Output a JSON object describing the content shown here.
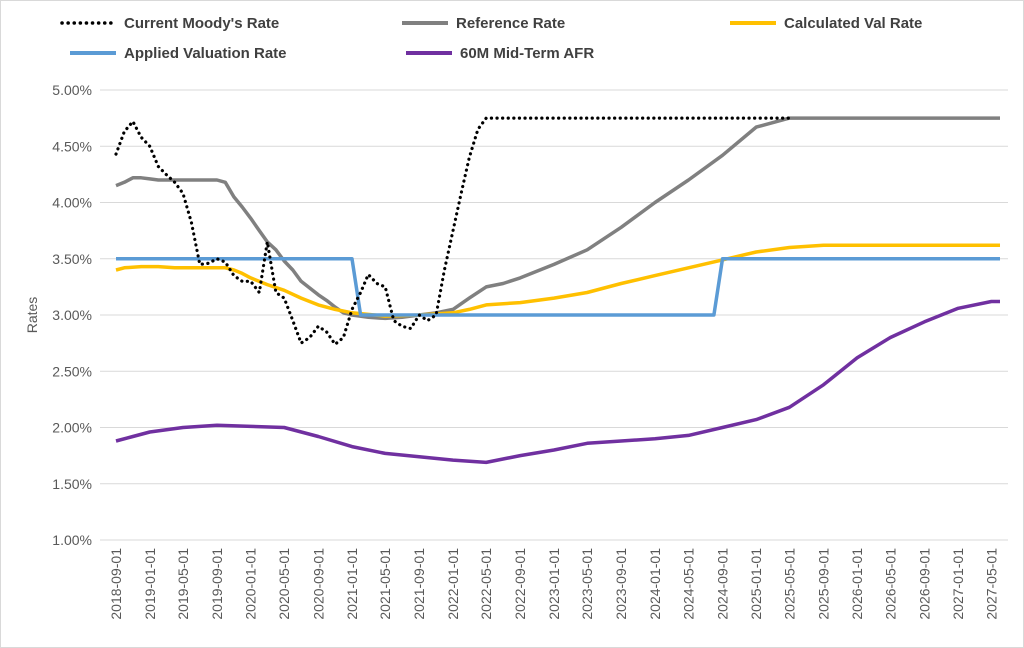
{
  "chart_data": {
    "type": "line",
    "ylabel": "Rates",
    "ylim": [
      0.01,
      0.05
    ],
    "yticks": [
      "1.00%",
      "1.50%",
      "2.00%",
      "2.50%",
      "3.00%",
      "3.50%",
      "4.00%",
      "4.50%",
      "5.00%"
    ],
    "x_ticks": [
      "2018-09-01",
      "2019-01-01",
      "2019-05-01",
      "2019-09-01",
      "2020-01-01",
      "2020-05-01",
      "2020-09-01",
      "2021-01-01",
      "2021-05-01",
      "2021-09-01",
      "2022-01-01",
      "2022-05-01",
      "2022-09-01",
      "2023-01-01",
      "2023-05-01",
      "2023-09-01",
      "2024-01-01",
      "2024-05-01",
      "2024-09-01",
      "2025-01-01",
      "2025-05-01",
      "2025-09-01",
      "2026-01-01",
      "2026-05-01",
      "2026-09-01",
      "2027-01-01",
      "2027-05-01"
    ],
    "grid": true,
    "legend_position": "top",
    "series": [
      {
        "name": "Current Moody's Rate",
        "color": "#000000",
        "style": "dotted",
        "points": [
          [
            "2018-09-01",
            0.0443
          ],
          [
            "2018-10-01",
            0.0463
          ],
          [
            "2018-11-01",
            0.0472
          ],
          [
            "2018-12-01",
            0.0458
          ],
          [
            "2019-01-01",
            0.045
          ],
          [
            "2019-02-01",
            0.0432
          ],
          [
            "2019-03-01",
            0.0425
          ],
          [
            "2019-04-01",
            0.0418
          ],
          [
            "2019-05-01",
            0.0408
          ],
          [
            "2019-06-01",
            0.0382
          ],
          [
            "2019-07-01",
            0.0345
          ],
          [
            "2019-08-01",
            0.0346
          ],
          [
            "2019-09-01",
            0.035
          ],
          [
            "2019-10-01",
            0.0347
          ],
          [
            "2019-11-01",
            0.0335
          ],
          [
            "2019-12-01",
            0.033
          ],
          [
            "2020-01-01",
            0.033
          ],
          [
            "2020-02-01",
            0.032
          ],
          [
            "2020-03-01",
            0.0365
          ],
          [
            "2020-04-01",
            0.032
          ],
          [
            "2020-05-01",
            0.0315
          ],
          [
            "2020-06-01",
            0.0295
          ],
          [
            "2020-07-01",
            0.0275
          ],
          [
            "2020-08-01",
            0.028
          ],
          [
            "2020-09-01",
            0.029
          ],
          [
            "2020-10-01",
            0.0285
          ],
          [
            "2020-11-01",
            0.0274
          ],
          [
            "2020-12-01",
            0.028
          ],
          [
            "2021-01-01",
            0.0305
          ],
          [
            "2021-02-01",
            0.032
          ],
          [
            "2021-03-01",
            0.0336
          ],
          [
            "2021-04-01",
            0.0328
          ],
          [
            "2021-05-01",
            0.0325
          ],
          [
            "2021-06-01",
            0.0295
          ],
          [
            "2021-07-01",
            0.029
          ],
          [
            "2021-08-01",
            0.0288
          ],
          [
            "2021-09-01",
            0.03
          ],
          [
            "2021-10-01",
            0.0295
          ],
          [
            "2021-11-01",
            0.03
          ],
          [
            "2021-12-01",
            0.034
          ],
          [
            "2022-01-01",
            0.0375
          ],
          [
            "2022-02-01",
            0.041
          ],
          [
            "2022-03-01",
            0.044
          ],
          [
            "2022-04-01",
            0.0465
          ],
          [
            "2022-05-01",
            0.0475
          ],
          [
            "2023-01-01",
            0.0475
          ],
          [
            "2024-01-01",
            0.0475
          ],
          [
            "2025-01-01",
            0.0475
          ],
          [
            "2025-05-01",
            0.0475
          ]
        ]
      },
      {
        "name": "Reference Rate",
        "color": "#808080",
        "style": "solid",
        "points": [
          [
            "2018-09-01",
            0.0415
          ],
          [
            "2018-10-01",
            0.0418
          ],
          [
            "2018-11-01",
            0.0422
          ],
          [
            "2018-12-01",
            0.0422
          ],
          [
            "2019-01-01",
            0.0421
          ],
          [
            "2019-02-01",
            0.042
          ],
          [
            "2019-03-01",
            0.042
          ],
          [
            "2019-04-01",
            0.042
          ],
          [
            "2019-05-01",
            0.042
          ],
          [
            "2019-06-01",
            0.042
          ],
          [
            "2019-07-01",
            0.042
          ],
          [
            "2019-08-01",
            0.042
          ],
          [
            "2019-09-01",
            0.042
          ],
          [
            "2019-10-01",
            0.0418
          ],
          [
            "2019-11-01",
            0.0405
          ],
          [
            "2019-12-01",
            0.0396
          ],
          [
            "2020-01-01",
            0.0386
          ],
          [
            "2020-02-01",
            0.0375
          ],
          [
            "2020-03-01",
            0.0365
          ],
          [
            "2020-04-01",
            0.0358
          ],
          [
            "2020-05-01",
            0.0348
          ],
          [
            "2020-06-01",
            0.034
          ],
          [
            "2020-07-01",
            0.033
          ],
          [
            "2020-08-01",
            0.0324
          ],
          [
            "2020-09-01",
            0.0318
          ],
          [
            "2020-10-01",
            0.0313
          ],
          [
            "2020-11-01",
            0.0307
          ],
          [
            "2020-12-01",
            0.0302
          ],
          [
            "2021-01-01",
            0.03
          ],
          [
            "2021-03-01",
            0.0298
          ],
          [
            "2021-05-01",
            0.0297
          ],
          [
            "2021-07-01",
            0.0298
          ],
          [
            "2021-09-01",
            0.03
          ],
          [
            "2021-11-01",
            0.0302
          ],
          [
            "2022-01-01",
            0.0305
          ],
          [
            "2022-03-01",
            0.0315
          ],
          [
            "2022-05-01",
            0.0325
          ],
          [
            "2022-07-01",
            0.0328
          ],
          [
            "2022-09-01",
            0.0333
          ],
          [
            "2023-01-01",
            0.0345
          ],
          [
            "2023-05-01",
            0.0358
          ],
          [
            "2023-09-01",
            0.0378
          ],
          [
            "2024-01-01",
            0.04
          ],
          [
            "2024-05-01",
            0.042
          ],
          [
            "2024-09-01",
            0.0442
          ],
          [
            "2025-01-01",
            0.0467
          ],
          [
            "2025-05-01",
            0.0475
          ],
          [
            "2025-09-01",
            0.0475
          ],
          [
            "2026-05-01",
            0.0475
          ],
          [
            "2027-05-01",
            0.0475
          ],
          [
            "2027-06-01",
            0.0475
          ]
        ]
      },
      {
        "name": "Calculated Val Rate",
        "color": "#FFC000",
        "style": "solid",
        "points": [
          [
            "2018-09-01",
            0.034
          ],
          [
            "2018-10-01",
            0.0342
          ],
          [
            "2018-12-01",
            0.0343
          ],
          [
            "2019-02-01",
            0.0343
          ],
          [
            "2019-04-01",
            0.0342
          ],
          [
            "2019-06-01",
            0.0342
          ],
          [
            "2019-08-01",
            0.0342
          ],
          [
            "2019-10-01",
            0.0342
          ],
          [
            "2019-11-01",
            0.034
          ],
          [
            "2019-12-01",
            0.0337
          ],
          [
            "2020-01-01",
            0.0333
          ],
          [
            "2020-03-01",
            0.0327
          ],
          [
            "2020-05-01",
            0.0322
          ],
          [
            "2020-07-01",
            0.0315
          ],
          [
            "2020-09-01",
            0.0309
          ],
          [
            "2020-11-01",
            0.0305
          ],
          [
            "2021-01-01",
            0.0302
          ],
          [
            "2021-05-01",
            0.0299
          ],
          [
            "2021-09-01",
            0.03
          ],
          [
            "2022-01-01",
            0.0302
          ],
          [
            "2022-03-01",
            0.0305
          ],
          [
            "2022-05-01",
            0.0309
          ],
          [
            "2022-09-01",
            0.0311
          ],
          [
            "2023-01-01",
            0.0315
          ],
          [
            "2023-05-01",
            0.032
          ],
          [
            "2023-09-01",
            0.0328
          ],
          [
            "2024-01-01",
            0.0335
          ],
          [
            "2024-05-01",
            0.0342
          ],
          [
            "2024-09-01",
            0.0349
          ],
          [
            "2025-01-01",
            0.0356
          ],
          [
            "2025-05-01",
            0.036
          ],
          [
            "2025-09-01",
            0.0362
          ],
          [
            "2026-05-01",
            0.0362
          ],
          [
            "2027-05-01",
            0.0362
          ],
          [
            "2027-06-01",
            0.0362
          ]
        ]
      },
      {
        "name": "Applied Valuation Rate",
        "color": "#5B9BD5",
        "style": "solid",
        "points": [
          [
            "2018-09-01",
            0.035
          ],
          [
            "2021-01-01",
            0.035
          ],
          [
            "2021-02-01",
            0.03
          ],
          [
            "2024-08-01",
            0.03
          ],
          [
            "2024-09-01",
            0.035
          ],
          [
            "2027-06-01",
            0.035
          ]
        ]
      },
      {
        "name": "60M Mid-Term AFR",
        "color": "#7030A0",
        "style": "solid",
        "points": [
          [
            "2018-09-01",
            0.0188
          ],
          [
            "2018-11-01",
            0.0192
          ],
          [
            "2019-01-01",
            0.0196
          ],
          [
            "2019-05-01",
            0.02
          ],
          [
            "2019-09-01",
            0.0202
          ],
          [
            "2020-01-01",
            0.0201
          ],
          [
            "2020-05-01",
            0.02
          ],
          [
            "2020-09-01",
            0.0192
          ],
          [
            "2021-01-01",
            0.0183
          ],
          [
            "2021-05-01",
            0.0177
          ],
          [
            "2021-09-01",
            0.0174
          ],
          [
            "2022-01-01",
            0.0171
          ],
          [
            "2022-05-01",
            0.0169
          ],
          [
            "2022-09-01",
            0.0175
          ],
          [
            "2023-01-01",
            0.018
          ],
          [
            "2023-05-01",
            0.0186
          ],
          [
            "2023-09-01",
            0.0188
          ],
          [
            "2024-01-01",
            0.019
          ],
          [
            "2024-05-01",
            0.0193
          ],
          [
            "2024-09-01",
            0.02
          ],
          [
            "2025-01-01",
            0.0207
          ],
          [
            "2025-05-01",
            0.0218
          ],
          [
            "2025-09-01",
            0.0238
          ],
          [
            "2026-01-01",
            0.0262
          ],
          [
            "2026-05-01",
            0.028
          ],
          [
            "2026-09-01",
            0.0294
          ],
          [
            "2027-01-01",
            0.0306
          ],
          [
            "2027-05-01",
            0.0312
          ],
          [
            "2027-06-01",
            0.0312
          ]
        ]
      }
    ]
  }
}
